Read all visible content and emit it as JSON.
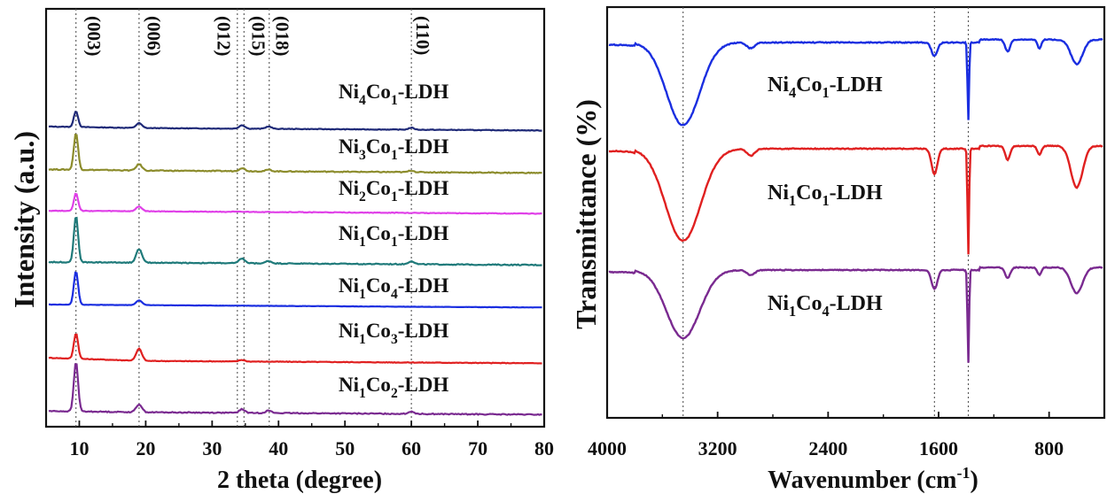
{
  "chart_data": [
    {
      "type": "line",
      "panel": "left",
      "title": "",
      "xlabel": "2 theta (degree)",
      "ylabel": "Intensity (a.u.)",
      "xlim": [
        5,
        80
      ],
      "xticks": [
        10,
        20,
        30,
        40,
        50,
        60,
        70,
        80
      ],
      "y_ticks_shown": false,
      "grid": false,
      "legend": "inline labels on the right of each trace",
      "peak_guides": [
        9.5,
        19.0,
        33.8,
        34.8,
        38.6,
        60.0
      ],
      "peak_labels": [
        {
          "label": "(003)",
          "x": 10.5
        },
        {
          "label": "(006)",
          "x": 19.5
        },
        {
          "label": "(012)",
          "x": 30.0
        },
        {
          "label": "(015)",
          "x": 35.2
        },
        {
          "label": "(018)",
          "x": 38.8
        },
        {
          "label": "(110)",
          "x": 60.0
        }
      ],
      "series": [
        {
          "prefix": "Ni",
          "sub1": "4",
          "mid": "Co",
          "sub2": "1",
          "suffix": "-LDH",
          "color": "#1f2a78",
          "baseline": 0.0,
          "tilt": 0.03,
          "peaks": [
            [
              9.5,
              1.0
            ],
            [
              19.0,
              0.3
            ],
            [
              34.5,
              0.22
            ],
            [
              38.5,
              0.15
            ],
            [
              60.0,
              0.12
            ]
          ],
          "noise": 0.02
        },
        {
          "prefix": "Ni",
          "sub1": "3",
          "mid": "Co",
          "sub2": "1",
          "suffix": "-LDH",
          "color": "#8c8c2c",
          "baseline": 0.0,
          "tilt": 0.02,
          "peaks": [
            [
              9.5,
              2.3
            ],
            [
              19.0,
              0.4
            ],
            [
              34.5,
              0.2
            ],
            [
              38.5,
              0.1
            ],
            [
              60.0,
              0.1
            ]
          ],
          "noise": 0.03
        },
        {
          "prefix": "Ni",
          "sub1": "2",
          "mid": "Co",
          "sub2": "1",
          "suffix": "-LDH",
          "color": "#e040e8",
          "baseline": 0.0,
          "tilt": 0.0,
          "peaks": [
            [
              9.5,
              1.1
            ],
            [
              19.0,
              0.3
            ]
          ],
          "noise": 0.02
        },
        {
          "prefix": "Ni",
          "sub1": "1",
          "mid": "Co",
          "sub2": "1",
          "suffix": "-LDH",
          "color": "#1f7a7a",
          "baseline": 0.0,
          "tilt": 0.0,
          "peaks": [
            [
              9.5,
              2.9
            ],
            [
              19.0,
              0.85
            ],
            [
              34.5,
              0.3
            ],
            [
              38.5,
              0.15
            ],
            [
              60.0,
              0.2
            ]
          ],
          "noise": 0.03
        },
        {
          "prefix": "Ni",
          "sub1": "1",
          "mid": "Co",
          "sub2": "4",
          "suffix": "-LDH",
          "color": "#1a2ee0",
          "baseline": 0.0,
          "tilt": 0.0,
          "peaks": [
            [
              9.5,
              2.1
            ],
            [
              19.0,
              0.3
            ]
          ],
          "noise": 0.01
        },
        {
          "prefix": "Ni",
          "sub1": "1",
          "mid": "Co",
          "sub2": "3",
          "suffix": "-LDH",
          "color": "#e02020",
          "baseline": 0.0,
          "tilt": 0.08,
          "peaks": [
            [
              9.5,
              1.6
            ],
            [
              19.0,
              0.75
            ],
            [
              34.5,
              0.1
            ]
          ],
          "noise": 0.02
        },
        {
          "prefix": "Ni",
          "sub1": "1",
          "mid": "Co",
          "sub2": "2",
          "suffix": "-LDH",
          "color": "#7a2a90",
          "baseline": 0.0,
          "tilt": 0.02,
          "peaks": [
            [
              9.5,
              3.1
            ],
            [
              19.0,
              0.5
            ],
            [
              34.5,
              0.22
            ],
            [
              38.5,
              0.15
            ],
            [
              60.0,
              0.15
            ]
          ],
          "noise": 0.03
        }
      ]
    },
    {
      "type": "line",
      "panel": "right",
      "title": "",
      "xlabel_main": "Wavenumber (cm",
      "xlabel_sup": "-1",
      "xlabel_end": ")",
      "ylabel": "Transmittance (%)",
      "xlim": [
        4000,
        400
      ],
      "x_reversed": true,
      "xticks": [
        4000,
        3200,
        2400,
        1600,
        800
      ],
      "y_ticks_shown": false,
      "grid": false,
      "legend": "inline labels inside the plot",
      "band_guides": [
        3450,
        1630,
        1385
      ],
      "series": [
        {
          "prefix": "Ni",
          "sub1": "4",
          "mid": "Co",
          "sub2": "1",
          "suffix": "-LDH",
          "color": "#1a2ee0",
          "bands": [
            [
              3450,
              1.7,
              170
            ],
            [
              2960,
              0.12,
              40
            ],
            [
              1630,
              0.28,
              30
            ],
            [
              1385,
              1.6,
              8
            ],
            [
              1100,
              0.25,
              25
            ],
            [
              870,
              0.18,
              20
            ],
            [
              600,
              0.5,
              60
            ]
          ]
        },
        {
          "prefix": "Ni",
          "sub1": "1",
          "mid": "Co",
          "sub2": "1",
          "suffix": "-LDH",
          "color": "#e02020",
          "bands": [
            [
              3450,
              2.0,
              180
            ],
            [
              2960,
              0.15,
              40
            ],
            [
              1630,
              0.55,
              30
            ],
            [
              1385,
              2.3,
              8
            ],
            [
              1100,
              0.3,
              25
            ],
            [
              870,
              0.2,
              20
            ],
            [
              600,
              0.9,
              60
            ]
          ]
        },
        {
          "prefix": "Ni",
          "sub1": "1",
          "mid": "Co",
          "sub2": "4",
          "suffix": "-LDH",
          "color": "#7a2a90",
          "bands": [
            [
              3450,
              1.6,
              170
            ],
            [
              2960,
              0.12,
              40
            ],
            [
              1630,
              0.45,
              30
            ],
            [
              1385,
              2.2,
              8
            ],
            [
              1100,
              0.25,
              25
            ],
            [
              870,
              0.18,
              20
            ],
            [
              600,
              0.6,
              60
            ]
          ]
        }
      ]
    }
  ]
}
